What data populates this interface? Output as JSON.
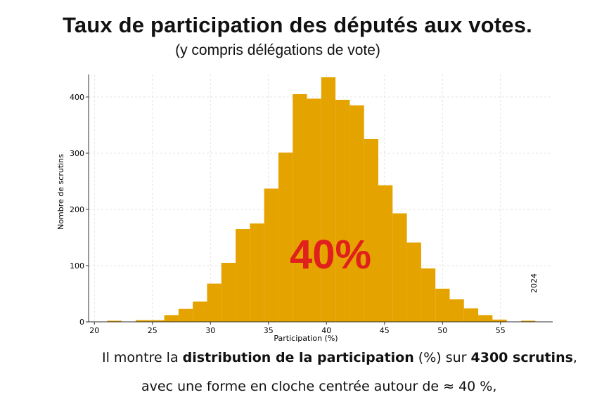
{
  "header": {
    "title": "Taux de participation des députés aux votes.",
    "subtitle": "(y compris délégations de vote)"
  },
  "overlay": {
    "big_label": "40%",
    "big_label_color": "#e0201c",
    "year": "2024"
  },
  "caption": {
    "line1_part1": "Il montre la ",
    "line1_bold1": "distribution de la participation",
    "line1_part2": " (%) sur ",
    "line1_bold2": "4300 scrutins",
    "line1_part3": ",",
    "line2": "avec une forme en  cloche centrée autour de ≈ 40 %,"
  },
  "colors": {
    "bar": "#e5a300"
  },
  "chart_data": {
    "type": "bar",
    "title": "",
    "xlabel": "Participation (%)",
    "ylabel": "Nombre de scrutins",
    "xlim": [
      19.5,
      59.5
    ],
    "ylim": [
      0,
      440
    ],
    "x_ticks": [
      20,
      25,
      30,
      35,
      40,
      45,
      50,
      55
    ],
    "y_ticks": [
      0,
      100,
      200,
      300,
      400
    ],
    "grid": true,
    "bin_width": 1.23,
    "bin_starts": [
      21.1,
      22.33,
      23.56,
      24.79,
      26.02,
      27.25,
      28.48,
      29.71,
      30.94,
      32.17,
      33.4,
      34.63,
      35.86,
      37.09,
      38.32,
      39.55,
      40.78,
      42.01,
      43.24,
      44.47,
      45.7,
      46.93,
      48.16,
      49.39,
      50.62,
      51.85,
      53.08,
      54.31,
      55.54,
      56.77
    ],
    "values": [
      2,
      0,
      3,
      3,
      12,
      23,
      36,
      68,
      105,
      165,
      175,
      237,
      301,
      405,
      397,
      435,
      395,
      385,
      325,
      243,
      193,
      141,
      95,
      59,
      40,
      24,
      12,
      4,
      0,
      2
    ]
  }
}
